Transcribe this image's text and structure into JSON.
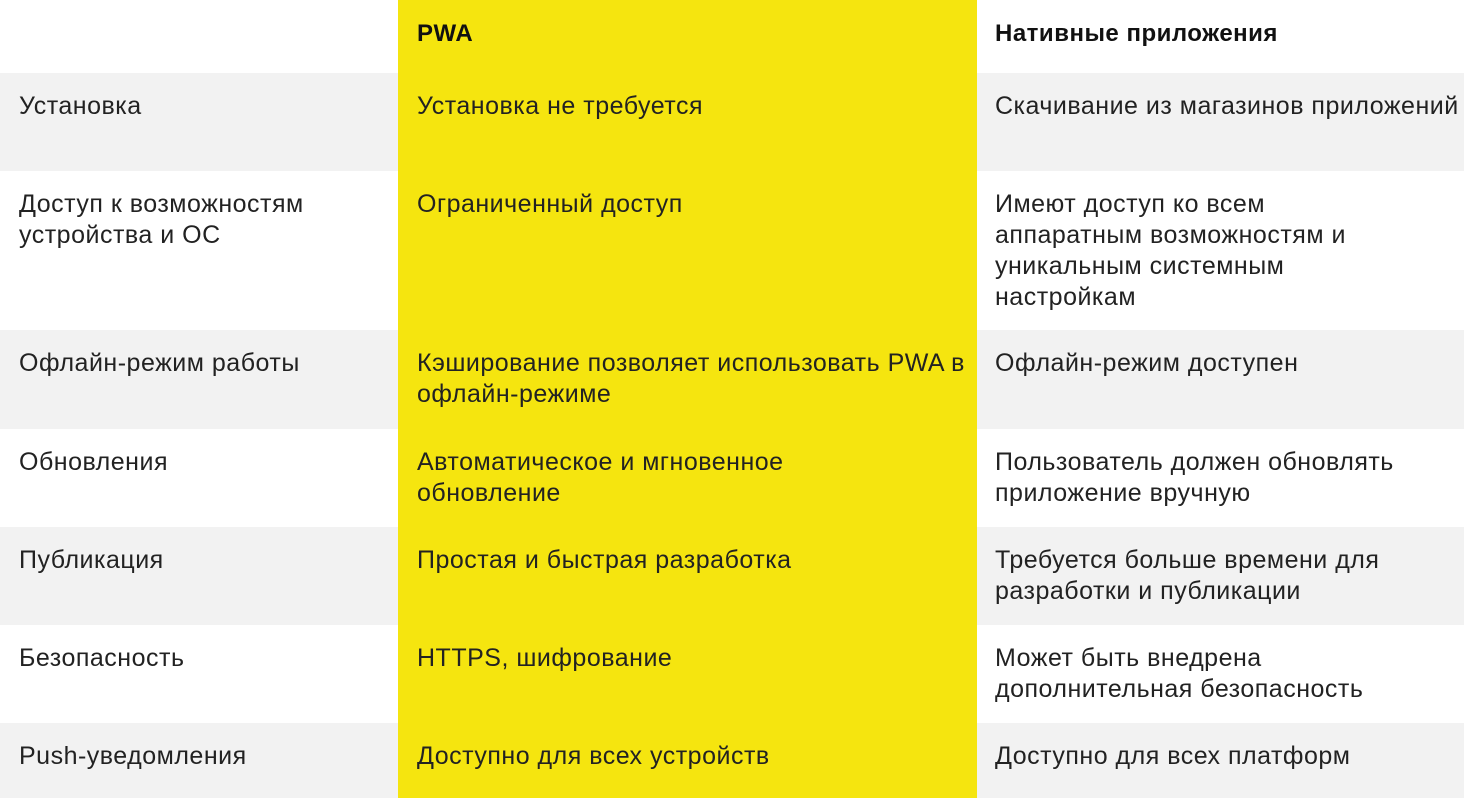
{
  "colors": {
    "accent": "#f5e50f",
    "stripe": "#f2f2f2"
  },
  "header": {
    "col1": "",
    "col2": "PWA",
    "col3": "Нативные приложения"
  },
  "rows": [
    {
      "feature": "Установка",
      "pwa": "Установка не требуется",
      "native": "Скачивание из магазинов приложений"
    },
    {
      "feature": "Доступ к возможностям устройства и ОС",
      "pwa": "Ограниченный доступ",
      "native": "Имеют доступ ко всем аппаратным возможностям и уникальным системным настройкам"
    },
    {
      "feature": "Офлайн-режим работы",
      "pwa": "Кэширование позволяет использовать PWA в офлайн-режиме",
      "native": "Офлайн-режим доступен"
    },
    {
      "feature": "Обновления",
      "pwa": "Автоматическое и мгновенное обновление",
      "native": "Пользователь должен обновлять приложение вручную"
    },
    {
      "feature": "Публикация",
      "pwa": "Простая и быстрая разработка",
      "native": "Требуется больше времени для разработки и публикации"
    },
    {
      "feature": "Безопасность",
      "pwa": "HTTPS, шифрование",
      "native": "Может быть внедрена дополнительная безопасность"
    },
    {
      "feature": "Push-уведомления",
      "pwa": "Доступно для всех устройств",
      "native": "Доступно для всех платформ"
    }
  ]
}
